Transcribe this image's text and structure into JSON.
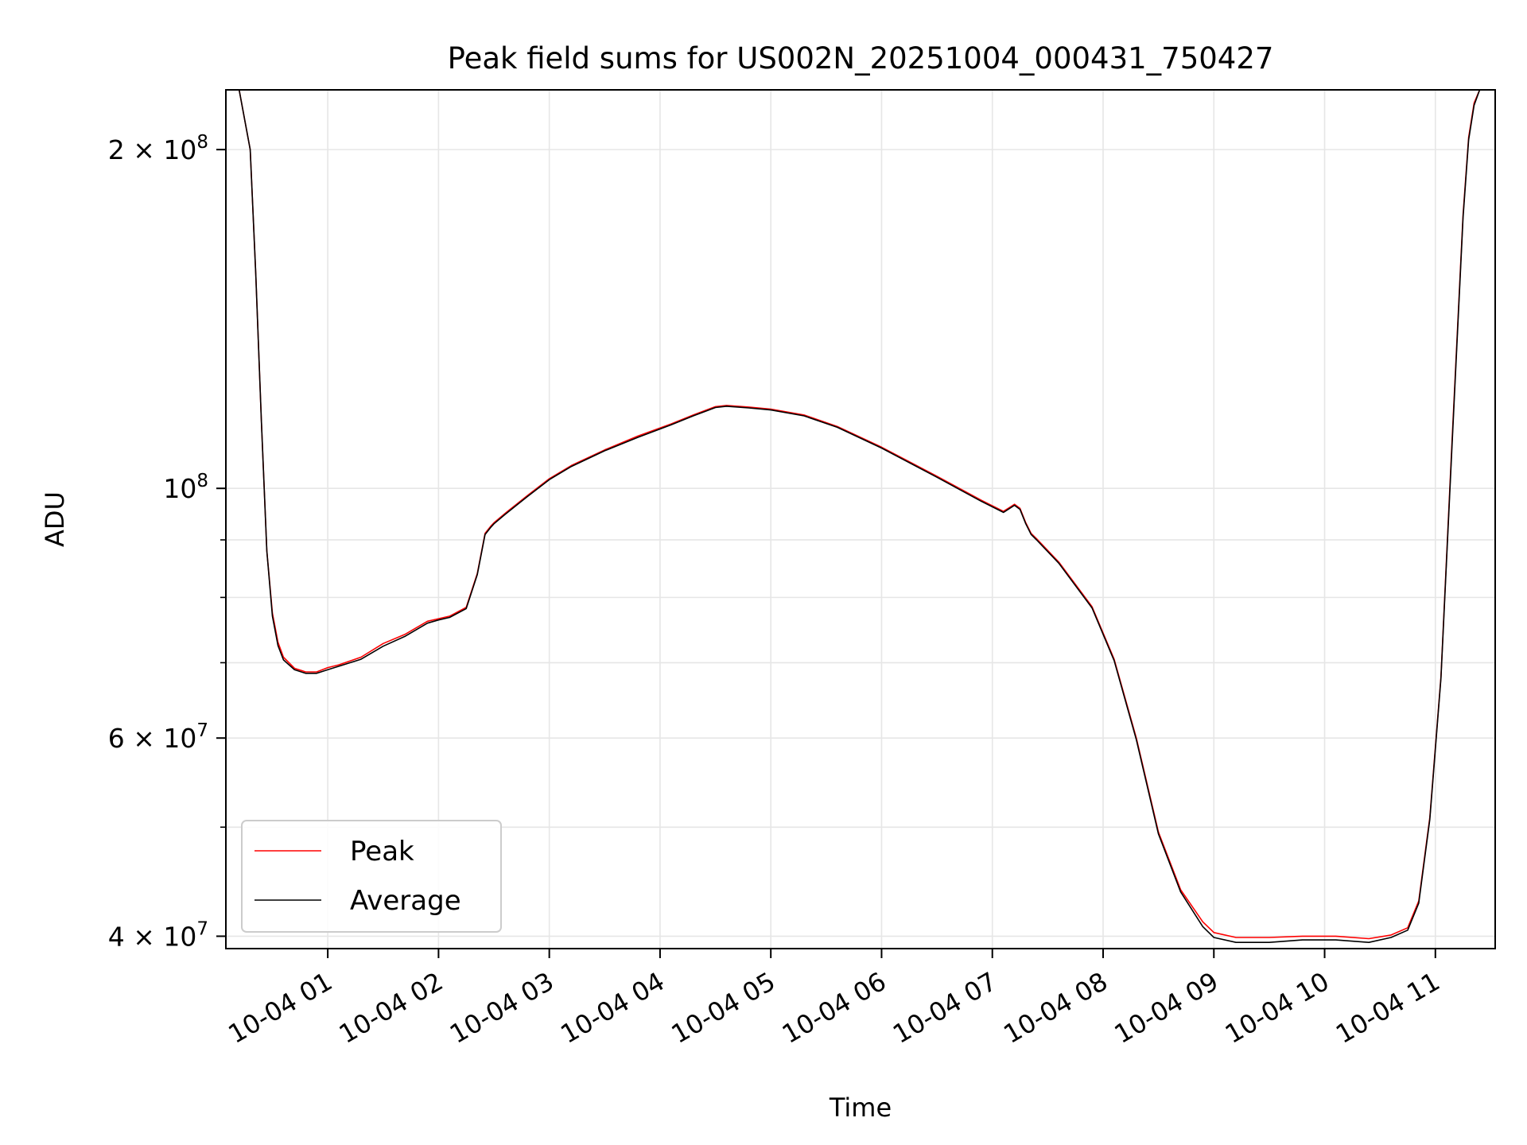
{
  "chart_data": {
    "type": "line",
    "title": "Peak field sums for US002N_20251004_000431_750427",
    "xlabel": "Time",
    "ylabel": "ADU",
    "yscale": "log",
    "ylim": [
      39000000,
      226000000
    ],
    "xlim_hours": [
      0.08,
      11.54
    ],
    "grid": true,
    "legend_loc": "lower left",
    "x_ticks": [
      {
        "t": 1,
        "label": "10-04 01"
      },
      {
        "t": 2,
        "label": "10-04 02"
      },
      {
        "t": 3,
        "label": "10-04 03"
      },
      {
        "t": 4,
        "label": "10-04 04"
      },
      {
        "t": 5,
        "label": "10-04 05"
      },
      {
        "t": 6,
        "label": "10-04 06"
      },
      {
        "t": 7,
        "label": "10-04 07"
      },
      {
        "t": 8,
        "label": "10-04 08"
      },
      {
        "t": 9,
        "label": "10-04 09"
      },
      {
        "t": 10,
        "label": "10-04 10"
      },
      {
        "t": 11,
        "label": "10-04 11"
      }
    ],
    "y_major_ticks": [
      {
        "v": 40000000,
        "base": "4 × 10",
        "exp": "7"
      },
      {
        "v": 60000000,
        "base": "6 × 10",
        "exp": "7"
      },
      {
        "v": 100000000,
        "base": "10",
        "exp": "8"
      },
      {
        "v": 200000000,
        "base": "2 × 10",
        "exp": "8"
      }
    ],
    "y_minor_ticks": [
      50000000,
      70000000,
      80000000,
      90000000
    ],
    "series": [
      {
        "name": "Peak",
        "color": "#ff0000",
        "x": [
          0.08,
          0.2,
          0.3,
          0.35,
          0.4,
          0.45,
          0.5,
          0.55,
          0.6,
          0.7,
          0.8,
          0.9,
          1.0,
          1.1,
          1.3,
          1.5,
          1.7,
          1.9,
          2.0,
          2.1,
          2.25,
          2.35,
          2.42,
          2.47,
          2.5,
          2.6,
          2.8,
          3.0,
          3.2,
          3.5,
          3.8,
          4.1,
          4.3,
          4.5,
          4.6,
          4.8,
          5.0,
          5.3,
          5.6,
          6.0,
          6.5,
          6.9,
          7.1,
          7.2,
          7.25,
          7.3,
          7.35,
          7.4,
          7.6,
          7.9,
          8.1,
          8.3,
          8.5,
          8.7,
          8.9,
          9.0,
          9.2,
          9.5,
          9.8,
          10.1,
          10.4,
          10.6,
          10.75,
          10.85,
          10.95,
          11.05,
          11.15,
          11.25,
          11.3,
          11.35,
          11.4,
          11.54
        ],
        "y": [
          226000000,
          226000000,
          200000000,
          155000000,
          115000000,
          88000000,
          77500000,
          73000000,
          70800000,
          69200000,
          68700000,
          68700000,
          69300000,
          69700000,
          70800000,
          72800000,
          74200000,
          76200000,
          76600000,
          77000000,
          78400000,
          84000000,
          91200000,
          92500000,
          93200000,
          95000000,
          98500000,
          102000000,
          104800000,
          108200000,
          111300000,
          114100000,
          116200000,
          118200000,
          118500000,
          118100000,
          117600000,
          116200000,
          113500000,
          108800000,
          102500000,
          97600000,
          95400000,
          96800000,
          96000000,
          93300000,
          91200000,
          90200000,
          86000000,
          78500000,
          70500000,
          60000000,
          49500000,
          44000000,
          41200000,
          40300000,
          39900000,
          39900000,
          40000000,
          40000000,
          39800000,
          40100000,
          40700000,
          43000000,
          51000000,
          68000000,
          110000000,
          175000000,
          205000000,
          220000000,
          226000000,
          226000000
        ]
      },
      {
        "name": "Average",
        "color": "#000000",
        "x": [
          0.08,
          0.2,
          0.3,
          0.35,
          0.4,
          0.45,
          0.5,
          0.55,
          0.6,
          0.7,
          0.8,
          0.9,
          1.0,
          1.1,
          1.3,
          1.5,
          1.7,
          1.9,
          2.0,
          2.1,
          2.25,
          2.35,
          2.42,
          2.47,
          2.5,
          2.6,
          2.8,
          3.0,
          3.2,
          3.5,
          3.8,
          4.1,
          4.3,
          4.5,
          4.6,
          4.8,
          5.0,
          5.3,
          5.6,
          6.0,
          6.5,
          6.9,
          7.1,
          7.2,
          7.25,
          7.3,
          7.35,
          7.4,
          7.6,
          7.9,
          8.1,
          8.3,
          8.5,
          8.7,
          8.9,
          9.0,
          9.2,
          9.5,
          9.8,
          10.1,
          10.4,
          10.6,
          10.75,
          10.85,
          10.95,
          11.05,
          11.15,
          11.25,
          11.3,
          11.35,
          11.4,
          11.54
        ],
        "y": [
          226000000,
          226000000,
          200000000,
          155000000,
          115000000,
          88000000,
          77000000,
          72500000,
          70400000,
          69000000,
          68500000,
          68500000,
          69000000,
          69500000,
          70500000,
          72400000,
          73900000,
          75900000,
          76400000,
          76800000,
          78200000,
          83800000,
          91000000,
          92300000,
          93000000,
          94800000,
          98300000,
          101800000,
          104600000,
          108000000,
          111000000,
          113900000,
          116000000,
          118000000,
          118300000,
          117900000,
          117400000,
          116000000,
          113300000,
          108600000,
          102300000,
          97400000,
          95200000,
          96600000,
          95800000,
          93100000,
          91000000,
          90000000,
          85800000,
          78300000,
          70300000,
          59800000,
          49300000,
          43800000,
          40800000,
          39900000,
          39500000,
          39500000,
          39700000,
          39700000,
          39500000,
          39900000,
          40500000,
          42800000,
          50800000,
          67800000,
          109000000,
          174000000,
          204000000,
          219000000,
          226000000,
          226000000
        ]
      }
    ]
  }
}
